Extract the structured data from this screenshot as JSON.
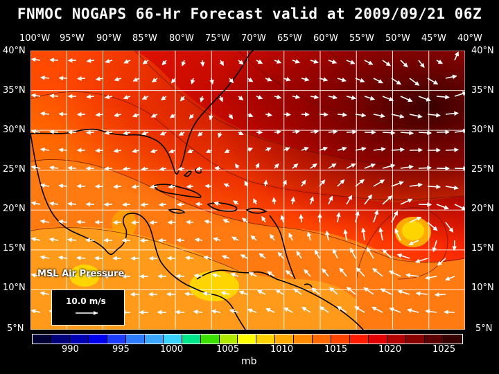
{
  "title": "FNMOC NOGAPS 66-Hr Forecast valid at 2009/09/21 06Z",
  "lon_labels": [
    "100°W",
    "95°W",
    "90°W",
    "85°W",
    "80°W",
    "75°W",
    "70°W",
    "65°W",
    "60°W",
    "55°W",
    "50°W",
    "45°W",
    "40°W"
  ],
  "lat_labels": [
    "40°N",
    "35°N",
    "30°N",
    "25°N",
    "20°N",
    "15°N",
    "10°N",
    "5°N"
  ],
  "field_label": "MSL Air Pressure",
  "vector_legend": "10.0 m/s",
  "colorbar": {
    "labels": [
      "990",
      "995",
      "1000",
      "1005",
      "1010",
      "1015",
      "1020",
      "1025"
    ],
    "unit": "mb",
    "colors": [
      "#000033",
      "#00007a",
      "#0000b5",
      "#0000ee",
      "#1e3cff",
      "#2f7bff",
      "#3aa6ff",
      "#39d1ff",
      "#00e68a",
      "#3ce000",
      "#b0e800",
      "#ffff00",
      "#ffd200",
      "#ffaa00",
      "#ff8a00",
      "#ff6a00",
      "#ff4400",
      "#ff1a00",
      "#e00000",
      "#b40000",
      "#880000",
      "#5a0000",
      "#350000"
    ]
  },
  "map_colors": {
    "level_1010": "#ffd500",
    "level_1012": "#ff9a1a",
    "level_1014": "#ff7a10",
    "level_1016": "#ff4a00",
    "level_1018": "#e81800",
    "level_1020": "#b00000",
    "level_1022": "#7a0000",
    "level_1024": "#4a0000"
  }
}
